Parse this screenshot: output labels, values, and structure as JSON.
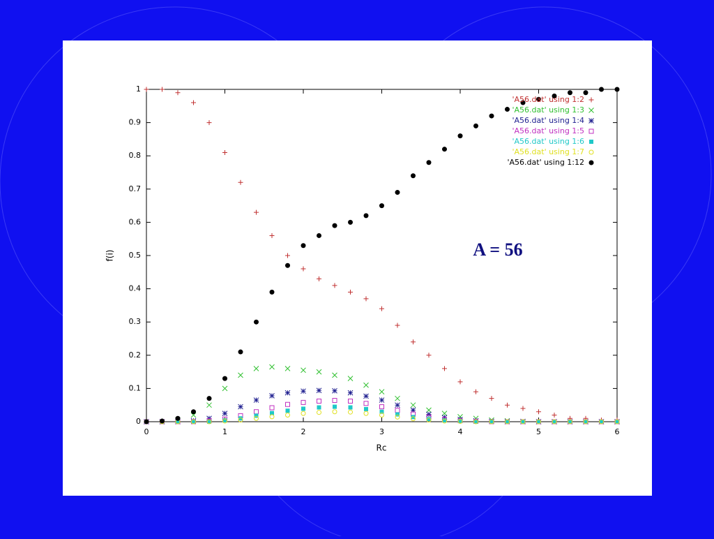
{
  "chart_data": {
    "type": "scatter",
    "annotation": "A = 56",
    "xlabel": "Rc",
    "ylabel": "f(i)",
    "xlim": [
      0,
      6
    ],
    "ylim": [
      0,
      1
    ],
    "xticks": [
      0,
      1,
      2,
      3,
      4,
      5,
      6
    ],
    "yticks": [
      0,
      0.1,
      0.2,
      0.3,
      0.4,
      0.5,
      0.6,
      0.7,
      0.8,
      0.9,
      1
    ],
    "legend": "upper-right",
    "x": [
      0,
      0.2,
      0.4,
      0.6,
      0.8,
      1.0,
      1.2,
      1.4,
      1.6,
      1.8,
      2.0,
      2.2,
      2.4,
      2.6,
      2.8,
      3.0,
      3.2,
      3.4,
      3.6,
      3.8,
      4.0,
      4.2,
      4.4,
      4.6,
      4.8,
      5.0,
      5.2,
      5.4,
      5.6,
      5.8,
      6.0
    ],
    "series": [
      {
        "name": "'A56.dat' using 1:2",
        "color": "#c03030",
        "marker": "plus",
        "values": [
          1.0,
          1.0,
          0.99,
          0.96,
          0.9,
          0.81,
          0.72,
          0.63,
          0.56,
          0.5,
          0.46,
          0.43,
          0.41,
          0.39,
          0.37,
          0.34,
          0.29,
          0.24,
          0.2,
          0.16,
          0.12,
          0.09,
          0.07,
          0.05,
          0.04,
          0.03,
          0.02,
          0.01,
          0.01,
          0.005,
          0.005
        ]
      },
      {
        "name": "'A56.dat' using 1:3",
        "color": "#30c030",
        "marker": "cross",
        "values": [
          0,
          0,
          0.005,
          0.02,
          0.05,
          0.1,
          0.14,
          0.16,
          0.165,
          0.16,
          0.155,
          0.15,
          0.14,
          0.13,
          0.11,
          0.09,
          0.07,
          0.05,
          0.035,
          0.025,
          0.015,
          0.01,
          0.005,
          0.003,
          0.001,
          0,
          0,
          0,
          0,
          0,
          0
        ]
      },
      {
        "name": "'A56.dat' using 1:4",
        "color": "#202090",
        "marker": "star",
        "values": [
          0,
          0,
          0,
          0.003,
          0.01,
          0.025,
          0.045,
          0.065,
          0.078,
          0.087,
          0.092,
          0.094,
          0.093,
          0.087,
          0.077,
          0.065,
          0.05,
          0.035,
          0.022,
          0.013,
          0.007,
          0.003,
          0.001,
          0,
          0,
          0,
          0,
          0,
          0,
          0,
          0
        ]
      },
      {
        "name": "'A56.dat' using 1:5",
        "color": "#c030c0",
        "marker": "square-open",
        "values": [
          0,
          0,
          0,
          0,
          0.003,
          0.008,
          0.018,
          0.03,
          0.042,
          0.052,
          0.058,
          0.062,
          0.064,
          0.062,
          0.055,
          0.045,
          0.034,
          0.023,
          0.014,
          0.007,
          0.003,
          0.001,
          0,
          0,
          0,
          0,
          0,
          0,
          0,
          0,
          0
        ]
      },
      {
        "name": "'A56.dat' using 1:6",
        "color": "#20c8c8",
        "marker": "square",
        "values": [
          0,
          0,
          0,
          0,
          0,
          0.004,
          0.01,
          0.018,
          0.026,
          0.033,
          0.039,
          0.043,
          0.045,
          0.043,
          0.038,
          0.03,
          0.022,
          0.014,
          0.008,
          0.004,
          0.002,
          0,
          0,
          0,
          0,
          0,
          0,
          0,
          0,
          0,
          0
        ]
      },
      {
        "name": "'A56.dat' using 1:7",
        "color": "#e0e020",
        "marker": "circle-open",
        "values": [
          0,
          0,
          0,
          0,
          0,
          0.002,
          0.005,
          0.01,
          0.015,
          0.02,
          0.025,
          0.028,
          0.03,
          0.029,
          0.025,
          0.02,
          0.014,
          0.009,
          0.005,
          0.002,
          0.001,
          0,
          0,
          0,
          0,
          0,
          0,
          0,
          0,
          0,
          0
        ]
      },
      {
        "name": "'A56.dat' using 1:12",
        "color": "#000000",
        "marker": "circle",
        "values": [
          0,
          0.002,
          0.01,
          0.03,
          0.07,
          0.13,
          0.21,
          0.3,
          0.39,
          0.47,
          0.53,
          0.56,
          0.59,
          0.6,
          0.62,
          0.65,
          0.69,
          0.74,
          0.78,
          0.82,
          0.86,
          0.89,
          0.92,
          0.94,
          0.96,
          0.97,
          0.98,
          0.99,
          0.99,
          1.0,
          1.0
        ]
      }
    ]
  }
}
